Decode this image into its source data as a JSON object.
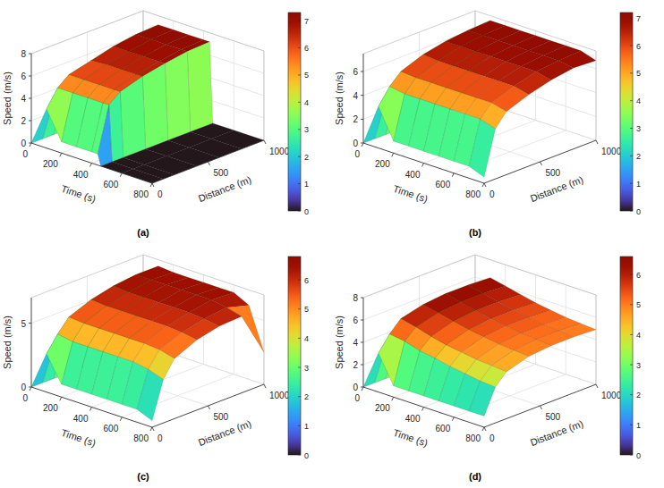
{
  "chart_data": [
    {
      "type": "surface",
      "caption": "(a)",
      "xlabel": "Time (s)",
      "ylabel": "Distance (m)",
      "zlabel": "Speed (m/s)",
      "x": [
        0,
        100,
        200,
        300,
        400,
        440,
        460,
        600,
        800
      ],
      "y": [
        0,
        100,
        200,
        400,
        600,
        800,
        1000
      ],
      "values": [
        [
          0,
          0,
          0,
          0,
          0,
          0,
          0
        ],
        [
          3.5,
          5.0,
          5.8,
          6.3,
          6.8,
          7.1,
          7.2
        ],
        [
          1,
          5.0,
          5.8,
          6.4,
          6.8,
          7.1,
          7.2
        ],
        [
          1,
          5.0,
          5.8,
          6.4,
          6.8,
          7.1,
          7.2
        ],
        [
          1,
          5.0,
          5.8,
          6.4,
          6.8,
          7.1,
          7.2
        ],
        [
          1,
          5.0,
          5.8,
          6.4,
          6.8,
          7.1,
          7.2
        ],
        [
          0,
          0,
          0,
          0,
          0,
          0,
          0
        ],
        [
          0,
          0,
          0,
          0,
          0,
          0,
          0
        ],
        [
          0,
          0,
          0,
          0,
          0,
          0,
          0
        ]
      ],
      "xlim": [
        0,
        800
      ],
      "ylim": [
        0,
        1000
      ],
      "zlim": [
        0,
        8
      ],
      "xticks": [
        0,
        200,
        400,
        600,
        800
      ],
      "yticks": [
        0,
        500,
        1000
      ],
      "zticks": [
        0,
        2,
        4,
        6,
        8
      ],
      "colorbar": {
        "range": [
          0,
          7.3
        ],
        "ticks": [
          0,
          1,
          2,
          3,
          4,
          5,
          6,
          7
        ]
      },
      "grid": true
    },
    {
      "type": "surface",
      "caption": "(b)",
      "xlabel": "Time (s)",
      "ylabel": "Distance (m)",
      "zlabel": "Speed (m/s)",
      "x": [
        0,
        100,
        200,
        300,
        400,
        500,
        600,
        700,
        800
      ],
      "y": [
        0,
        100,
        200,
        400,
        600,
        800,
        1000
      ],
      "values": [
        [
          0,
          0,
          0,
          0,
          0,
          0,
          0
        ],
        [
          3.5,
          4.8,
          5.7,
          6.4,
          6.8,
          7.0,
          7.1
        ],
        [
          1,
          4.6,
          5.6,
          6.3,
          6.8,
          7.0,
          7.1
        ],
        [
          1,
          4.6,
          5.6,
          6.3,
          6.8,
          7.0,
          7.1
        ],
        [
          1,
          4.6,
          5.6,
          6.3,
          6.8,
          7.0,
          7.1
        ],
        [
          1,
          4.6,
          5.6,
          6.3,
          6.8,
          7.0,
          7.1
        ],
        [
          1,
          4.6,
          5.6,
          6.3,
          6.8,
          7.0,
          7.1
        ],
        [
          1,
          4.6,
          5.6,
          6.3,
          6.8,
          7.0,
          7.1
        ],
        [
          0.5,
          4.2,
          5.3,
          6.0,
          6.5,
          6.8,
          6.7
        ]
      ],
      "xlim": [
        0,
        800
      ],
      "ylim": [
        0,
        1000
      ],
      "zlim": [
        0,
        7.5
      ],
      "xticks": [
        0,
        200,
        400,
        600,
        800
      ],
      "yticks": [
        0,
        500,
        1000
      ],
      "zticks": [
        0,
        2,
        4,
        6
      ],
      "colorbar": {
        "range": [
          0,
          7.2
        ],
        "ticks": [
          0,
          1,
          2,
          3,
          4,
          5,
          6,
          7
        ]
      },
      "grid": true
    },
    {
      "type": "surface",
      "caption": "(c)",
      "xlabel": "Time (s)",
      "ylabel": "Distance (m)",
      "zlabel": "Speed (m/s)",
      "x": [
        0,
        100,
        200,
        300,
        400,
        500,
        600,
        700,
        800
      ],
      "y": [
        0,
        100,
        200,
        400,
        600,
        800,
        1000
      ],
      "values": [
        [
          0,
          0,
          0,
          0,
          0,
          0,
          0
        ],
        [
          3,
          4.2,
          5.2,
          5.9,
          6.3,
          6.5,
          6.5
        ],
        [
          1,
          4.0,
          5.1,
          5.8,
          6.2,
          6.5,
          6.4
        ],
        [
          1,
          4.0,
          5.1,
          5.8,
          6.2,
          6.5,
          6.4
        ],
        [
          1,
          4.0,
          5.1,
          5.8,
          6.2,
          6.5,
          6.4
        ],
        [
          1,
          4.0,
          5.1,
          5.8,
          6.2,
          6.5,
          6.4
        ],
        [
          1,
          4.0,
          5.1,
          5.8,
          6.2,
          6.5,
          6.4
        ],
        [
          1,
          3.8,
          5.0,
          5.7,
          6.1,
          6.3,
          5.8
        ],
        [
          0.5,
          3.4,
          4.7,
          5.5,
          5.9,
          6.0,
          2.5
        ]
      ],
      "xlim": [
        0,
        800
      ],
      "ylim": [
        0,
        1000
      ],
      "zlim": [
        0,
        7
      ],
      "xticks": [
        0,
        200,
        400,
        600,
        800
      ],
      "yticks": [
        0,
        500,
        1000
      ],
      "zticks": [
        0,
        5
      ],
      "colorbar": {
        "range": [
          0,
          6.8
        ],
        "ticks": [
          0,
          1,
          2,
          3,
          4,
          5,
          6
        ]
      },
      "grid": true
    },
    {
      "type": "surface",
      "caption": "(d)",
      "xlabel": "Time (s)",
      "ylabel": "Distance (m)",
      "zlabel": "Speed (m/s)",
      "x": [
        0,
        100,
        200,
        300,
        400,
        500,
        600,
        700,
        800
      ],
      "y": [
        0,
        100,
        200,
        400,
        600,
        800,
        1000
      ],
      "values": [
        [
          0,
          0,
          0,
          0,
          0,
          0,
          0
        ],
        [
          3.5,
          4.8,
          5.8,
          6.3,
          6.5,
          6.5,
          6.4
        ],
        [
          1,
          4.6,
          5.5,
          6.0,
          6.2,
          6.2,
          6.1
        ],
        [
          1,
          4.2,
          5.1,
          5.7,
          5.9,
          5.9,
          5.8
        ],
        [
          1,
          4.0,
          4.8,
          5.4,
          5.6,
          5.6,
          5.5
        ],
        [
          1,
          3.7,
          4.6,
          5.2,
          5.4,
          5.4,
          5.3
        ],
        [
          1,
          3.5,
          4.4,
          5.0,
          5.2,
          5.2,
          5.1
        ],
        [
          1,
          3.3,
          4.3,
          4.9,
          5.1,
          5.1,
          5.0
        ],
        [
          1,
          3.2,
          4.2,
          4.8,
          5.0,
          5.0,
          4.9
        ]
      ],
      "xlim": [
        0,
        800
      ],
      "ylim": [
        0,
        1000
      ],
      "zlim": [
        0,
        8
      ],
      "xticks": [
        0,
        200,
        400,
        600,
        800
      ],
      "yticks": [
        0,
        500,
        1000
      ],
      "zticks": [
        0,
        2,
        4,
        6,
        8
      ],
      "colorbar": {
        "range": [
          0,
          6.6
        ],
        "ticks": [
          0,
          1,
          2,
          3,
          4,
          5,
          6
        ]
      },
      "grid": true
    }
  ]
}
